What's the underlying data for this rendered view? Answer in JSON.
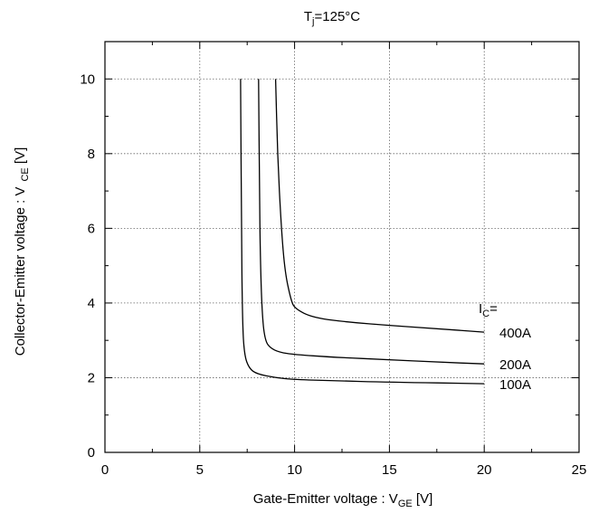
{
  "chart_data": {
    "type": "line",
    "title_parts": {
      "main": "T",
      "sub": "j",
      "rest": "=125°C"
    },
    "xlabel_parts": {
      "main": "Gate-Emitter voltage : V",
      "sub": "GE",
      "rest": " [V]"
    },
    "ylabel_parts": {
      "main": "Collector-Emitter voltage : V",
      "sub": "CE",
      "rest": " [V]"
    },
    "xlim": [
      0,
      25
    ],
    "ylim": [
      0,
      11
    ],
    "xticks": [
      0,
      5,
      10,
      15,
      20,
      25
    ],
    "yticks": [
      0,
      2,
      4,
      6,
      8,
      10
    ],
    "grid": true,
    "legend_header_parts": {
      "main": "I",
      "sub": "C",
      "rest": "="
    },
    "series": [
      {
        "name": "400A",
        "points": [
          [
            9.0,
            10.0
          ],
          [
            9.1,
            8.0
          ],
          [
            9.3,
            6.0
          ],
          [
            9.5,
            4.8
          ],
          [
            9.8,
            4.1
          ],
          [
            10.0,
            3.85
          ],
          [
            11.0,
            3.6
          ],
          [
            13.0,
            3.48
          ],
          [
            15.0,
            3.4
          ],
          [
            17.0,
            3.33
          ],
          [
            20.0,
            3.22
          ]
        ]
      },
      {
        "name": "200A",
        "points": [
          [
            8.1,
            10.0
          ],
          [
            8.15,
            7.0
          ],
          [
            8.2,
            5.0
          ],
          [
            8.3,
            3.6
          ],
          [
            8.45,
            3.0
          ],
          [
            8.7,
            2.8
          ],
          [
            9.2,
            2.68
          ],
          [
            10.0,
            2.62
          ],
          [
            12.0,
            2.55
          ],
          [
            15.0,
            2.48
          ],
          [
            17.5,
            2.42
          ],
          [
            20.0,
            2.37
          ]
        ]
      },
      {
        "name": "100A",
        "points": [
          [
            7.15,
            10.0
          ],
          [
            7.2,
            6.0
          ],
          [
            7.25,
            3.5
          ],
          [
            7.35,
            2.6
          ],
          [
            7.6,
            2.25
          ],
          [
            8.0,
            2.1
          ],
          [
            9.0,
            2.0
          ],
          [
            10.0,
            1.95
          ],
          [
            12.0,
            1.92
          ],
          [
            15.0,
            1.88
          ],
          [
            20.0,
            1.84
          ]
        ]
      }
    ]
  }
}
